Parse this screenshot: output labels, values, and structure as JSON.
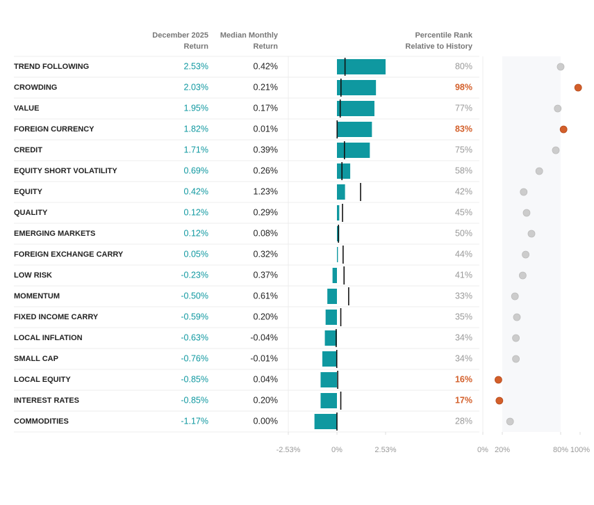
{
  "chart_data": {
    "type": "bar",
    "headers": {
      "returns": [
        "December 2025",
        "Return"
      ],
      "median": [
        "Median Monthly",
        "Return"
      ],
      "percentile": [
        "Percentile Rank",
        "Relative to History"
      ]
    },
    "categories": [
      "TREND FOLLOWING",
      "CROWDING",
      "VALUE",
      "FOREIGN CURRENCY",
      "CREDIT",
      "EQUITY SHORT VOLATILITY",
      "EQUITY",
      "QUALITY",
      "EMERGING MARKETS",
      "FOREIGN EXCHANGE CARRY",
      "LOW RISK",
      "MOMENTUM",
      "FIXED INCOME CARRY",
      "LOCAL INFLATION",
      "SMALL CAP",
      "LOCAL EQUITY",
      "INTEREST RATES",
      "COMMODITIES"
    ],
    "returns": {
      "color": "#0f98a0",
      "values": [
        2.53,
        2.03,
        1.95,
        1.82,
        1.71,
        0.69,
        0.42,
        0.12,
        0.12,
        0.05,
        -0.23,
        -0.5,
        -0.59,
        -0.63,
        -0.76,
        -0.85,
        -0.85,
        -1.17
      ],
      "value_labels": [
        "2.53%",
        "2.03%",
        "1.95%",
        "1.82%",
        "1.71%",
        "0.69%",
        "0.42%",
        "0.12%",
        "0.12%",
        "0.05%",
        "-0.23%",
        "-0.50%",
        "-0.59%",
        "-0.63%",
        "-0.76%",
        "-0.85%",
        "-0.85%",
        "-1.17%"
      ]
    },
    "median": {
      "color": "#111111",
      "values": [
        0.42,
        0.21,
        0.17,
        0.01,
        0.39,
        0.26,
        1.23,
        0.29,
        0.08,
        0.32,
        0.37,
        0.61,
        0.2,
        -0.04,
        -0.01,
        0.04,
        0.2,
        0.0
      ],
      "value_labels": [
        "0.42%",
        "0.21%",
        "0.17%",
        "0.01%",
        "0.39%",
        "0.26%",
        "1.23%",
        "0.29%",
        "0.08%",
        "0.32%",
        "0.37%",
        "0.61%",
        "0.20%",
        "-0.04%",
        "-0.01%",
        "0.04%",
        "0.20%",
        "0.00%"
      ]
    },
    "xlim": [
      -2.53,
      2.53
    ],
    "xticks": [
      {
        "value": -2.53,
        "label": "-2.53%"
      },
      {
        "value": 0,
        "label": "0%"
      },
      {
        "value": 2.53,
        "label": "2.53%"
      }
    ],
    "percentile": {
      "values": [
        80,
        98,
        77,
        83,
        75,
        58,
        42,
        45,
        50,
        44,
        41,
        33,
        35,
        34,
        34,
        16,
        17,
        28
      ],
      "value_labels": [
        "80%",
        "98%",
        "77%",
        "83%",
        "75%",
        "58%",
        "42%",
        "45%",
        "50%",
        "44%",
        "41%",
        "33%",
        "35%",
        "34%",
        "34%",
        "16%",
        "17%",
        "28%"
      ],
      "colors": [
        "#cccccc",
        "#d35f2a",
        "#cccccc",
        "#d35f2a",
        "#cccccc",
        "#cccccc",
        "#cccccc",
        "#cccccc",
        "#cccccc",
        "#cccccc",
        "#cccccc",
        "#cccccc",
        "#cccccc",
        "#cccccc",
        "#cccccc",
        "#d35f2a",
        "#d35f2a",
        "#cccccc"
      ]
    },
    "plim": [
      0,
      100
    ],
    "pticks": [
      {
        "value": 0,
        "label": "0%"
      },
      {
        "value": 20,
        "label": "20%"
      },
      {
        "value": 80,
        "label": "80%"
      },
      {
        "value": 100,
        "label": "100%"
      }
    ],
    "shaded_range": [
      20,
      80
    ]
  }
}
